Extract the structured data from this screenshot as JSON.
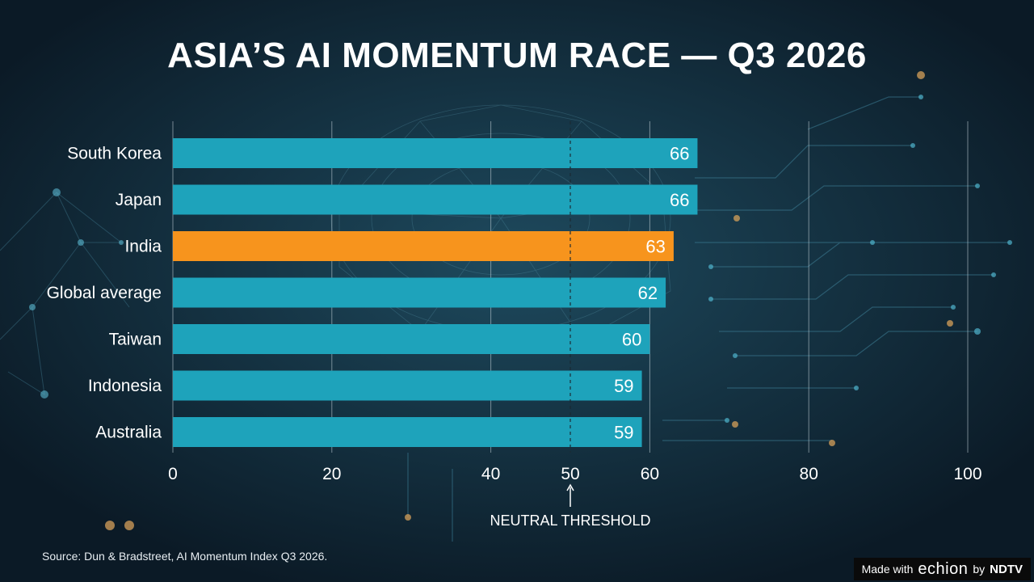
{
  "chart_data": {
    "type": "bar",
    "orientation": "horizontal",
    "title": "ASIA’S AI MOMENTUM RACE — Q3 2026",
    "categories": [
      "South Korea",
      "Japan",
      "India",
      "Global average",
      "Taiwan",
      "Indonesia",
      "Australia"
    ],
    "values": [
      66,
      66,
      63,
      62,
      60,
      59,
      59
    ],
    "highlight": "India",
    "xlim": [
      0,
      100
    ],
    "xticks": [
      0,
      20,
      40,
      50,
      60,
      80,
      100
    ],
    "grid": true,
    "reference_line": {
      "value": 50,
      "label": "NEUTRAL THRESHOLD",
      "style": "dashed"
    },
    "colors": {
      "bar": "#1ea3bb",
      "highlight": "#f7941d"
    }
  },
  "source": "Source: Dun & Bradstreet, AI Momentum Index Q3 2026.",
  "watermark": {
    "prefix": "Made with",
    "logo": "echion",
    "by": "by",
    "brand": "NDTV"
  }
}
